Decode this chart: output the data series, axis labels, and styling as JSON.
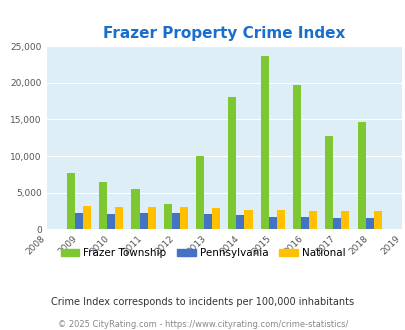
{
  "title": "Frazer Property Crime Index",
  "years": [
    2008,
    2009,
    2010,
    2011,
    2012,
    2013,
    2014,
    2015,
    2016,
    2017,
    2018,
    2019
  ],
  "frazer": [
    0,
    7700,
    6400,
    5500,
    3400,
    10000,
    18100,
    23600,
    19700,
    12700,
    14600,
    0
  ],
  "pennsylvania": [
    0,
    2300,
    2100,
    2300,
    2200,
    2100,
    1900,
    1700,
    1700,
    1600,
    1500,
    0
  ],
  "national": [
    0,
    3200,
    3100,
    3100,
    3100,
    2900,
    2700,
    2600,
    2500,
    2500,
    2500,
    0
  ],
  "frazer_color": "#7dc832",
  "pennsylvania_color": "#4472c4",
  "national_color": "#ffc000",
  "plot_bg_color": "#ddeef6",
  "outer_bg_color": "#ffffff",
  "ylim": [
    0,
    25000
  ],
  "yticks": [
    0,
    5000,
    10000,
    15000,
    20000,
    25000
  ],
  "title_color": "#1a6fcc",
  "title_fontsize": 11,
  "legend_label_frazer": "Frazer Township",
  "legend_label_pa": "Pennsylvania",
  "legend_label_nat": "National",
  "footnote1": "Crime Index corresponds to incidents per 100,000 inhabitants",
  "footnote2": "© 2025 CityRating.com - https://www.cityrating.com/crime-statistics/",
  "bar_width": 0.25
}
